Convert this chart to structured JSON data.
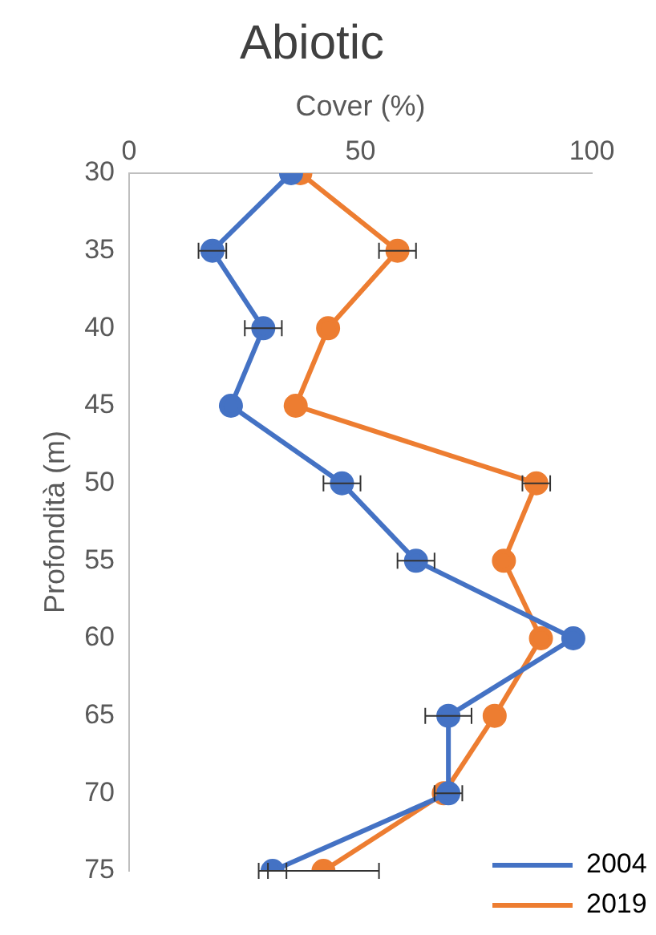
{
  "chart_data": {
    "type": "line",
    "title": "Abiotic",
    "xlabel": "Cover (%)",
    "ylabel": "Profondità (m)",
    "xlim": [
      0,
      100
    ],
    "xticks": [
      0,
      50,
      100
    ],
    "ylim": [
      75,
      30
    ],
    "yticks": [
      30,
      35,
      40,
      45,
      50,
      55,
      60,
      65,
      70,
      75
    ],
    "marker": "circle",
    "line_style": "solid",
    "legend": "bottom right",
    "grid": false,
    "series": [
      {
        "name": "2004",
        "color": "#4472c4",
        "x": [
          35,
          18,
          29,
          22,
          46,
          62,
          96,
          69,
          69,
          31
        ],
        "values": [
          30,
          35,
          40,
          45,
          50,
          55,
          60,
          65,
          70,
          75
        ],
        "xerrors": [
          null,
          3,
          4,
          null,
          4,
          4,
          null,
          5,
          3,
          3
        ]
      },
      {
        "name": "2019",
        "color": "#ed7d31",
        "x": [
          37,
          58,
          43,
          36,
          88,
          81,
          89,
          79,
          68,
          42
        ],
        "values": [
          30,
          35,
          40,
          45,
          50,
          55,
          60,
          65,
          70,
          75
        ],
        "xerrors": [
          null,
          4,
          null,
          null,
          3,
          null,
          null,
          null,
          null,
          12
        ]
      }
    ]
  }
}
